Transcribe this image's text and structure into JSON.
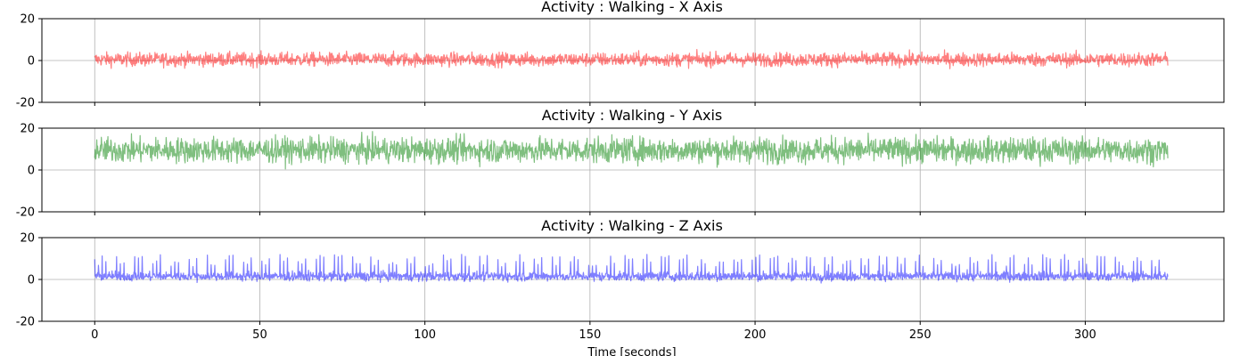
{
  "chart_data": [
    {
      "type": "line",
      "title": "Activity : Walking - X Axis",
      "color": "#ff0000",
      "opacity": 0.5,
      "x_range": [
        0,
        325
      ],
      "xlim": [
        -16,
        342
      ],
      "ylim": [
        -20,
        20
      ],
      "yticks": [
        -20,
        0,
        20
      ],
      "xticks": [
        0,
        50,
        100,
        150,
        200,
        250,
        300
      ],
      "grid": true,
      "series": [
        {
          "signal": {
            "center": 0.5,
            "amplitude_range": [
              -5,
              9
            ],
            "min": -9,
            "max": 10,
            "profile": "noisy, roughly symmetric"
          }
        }
      ]
    },
    {
      "type": "line",
      "title": "Activity : Walking - Y Axis",
      "color": "#008000",
      "opacity": 0.5,
      "x_range": [
        0,
        325
      ],
      "xlim": [
        -16,
        342
      ],
      "ylim": [
        -20,
        20
      ],
      "yticks": [
        -20,
        0,
        20
      ],
      "xticks": [
        0,
        50,
        100,
        150,
        200,
        250,
        300
      ],
      "grid": true,
      "series": [
        {
          "signal": {
            "center": 9.5,
            "amplitude_range": [
              3,
              18
            ],
            "min": 0,
            "max": 19,
            "profile": "noisy, dense band"
          }
        }
      ]
    },
    {
      "type": "line",
      "title": "Activity : Walking - Z Axis",
      "color": "#0000ff",
      "opacity": 0.5,
      "x_range": [
        0,
        325
      ],
      "xlim": [
        -16,
        342
      ],
      "ylim": [
        -20,
        20
      ],
      "yticks": [
        -20,
        0,
        20
      ],
      "xticks": [
        0,
        50,
        100,
        150,
        200,
        250,
        300
      ],
      "grid": true,
      "xlabel": "Time [seconds]",
      "series": [
        {
          "signal": {
            "center": 1.5,
            "amplitude_range": [
              -4,
              13
            ],
            "min": -5,
            "max": 13,
            "profile": "periodic spikes about every 1.1 s"
          }
        }
      ]
    }
  ]
}
